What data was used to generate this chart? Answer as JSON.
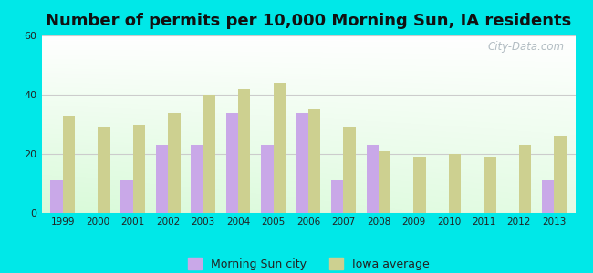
{
  "title": "Number of permits per 10,000 Morning Sun, IA residents",
  "years": [
    1999,
    2000,
    2001,
    2002,
    2003,
    2004,
    2005,
    2006,
    2007,
    2008,
    2009,
    2010,
    2011,
    2012,
    2013
  ],
  "morning_sun": [
    11,
    0,
    11,
    23,
    23,
    34,
    23,
    34,
    11,
    23,
    0,
    0,
    0,
    0,
    11
  ],
  "iowa_avg": [
    33,
    29,
    30,
    34,
    40,
    42,
    44,
    35,
    29,
    21,
    19,
    20,
    19,
    23,
    26
  ],
  "morning_sun_color": "#c9a8e8",
  "iowa_avg_color": "#ccd eighteen",
  "background_color": "#00e8e8",
  "ylim": [
    0,
    60
  ],
  "yticks": [
    0,
    20,
    40,
    60
  ],
  "bar_width": 0.35,
  "title_fontsize": 13,
  "legend_labels": [
    "Morning Sun city",
    "Iowa average"
  ],
  "watermark": "City-Data.com",
  "iowa_avg_color_hex": "#cdd eighteen",
  "ms_color": "#c9a8e8",
  "ia_color": "#cdd090"
}
